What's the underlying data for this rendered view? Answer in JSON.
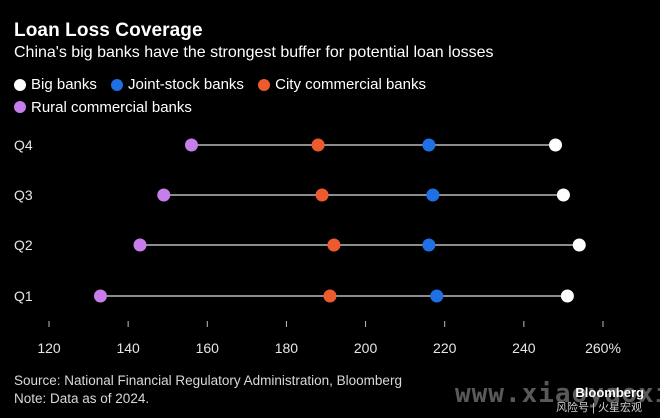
{
  "header": {
    "title": "Loan Loss Coverage",
    "subtitle": "China's big banks have the strongest buffer for potential loan losses"
  },
  "legend": [
    {
      "label": "Big banks",
      "color": "#ffffff"
    },
    {
      "label": "Joint-stock banks",
      "color": "#1f6fe5"
    },
    {
      "label": "City commercial banks",
      "color": "#ec5b2e"
    },
    {
      "label": "Rural commercial banks",
      "color": "#c77dea"
    }
  ],
  "footer": {
    "source": "Source: National Financial Regulatory Administration, Bloomberg",
    "note": "Note: Data as of 2024."
  },
  "watermark": "www.xiaoyaoxin.com",
  "brand": {
    "name": "Bloomberg",
    "sub": "风险号 | 火星宏观"
  },
  "chart_data": {
    "type": "dot-range",
    "categories": [
      "Q4",
      "Q3",
      "Q2",
      "Q1"
    ],
    "series": [
      {
        "name": "Big banks",
        "color": "#ffffff",
        "values": [
          248,
          250,
          254,
          251
        ]
      },
      {
        "name": "Joint-stock banks",
        "color": "#1f6fe5",
        "values": [
          216,
          217,
          216,
          218
        ]
      },
      {
        "name": "City commercial banks",
        "color": "#ec5b2e",
        "values": [
          188,
          189,
          192,
          191
        ]
      },
      {
        "name": "Rural commercial banks",
        "color": "#c77dea",
        "values": [
          156,
          149,
          143,
          133
        ]
      }
    ],
    "xlim": [
      120,
      260
    ],
    "xticks": [
      120,
      140,
      160,
      180,
      200,
      220,
      240,
      260
    ],
    "xtick_labels": [
      "120",
      "140",
      "160",
      "180",
      "200",
      "220",
      "240",
      "260%"
    ],
    "grid": false,
    "legend_position": "top-left"
  }
}
